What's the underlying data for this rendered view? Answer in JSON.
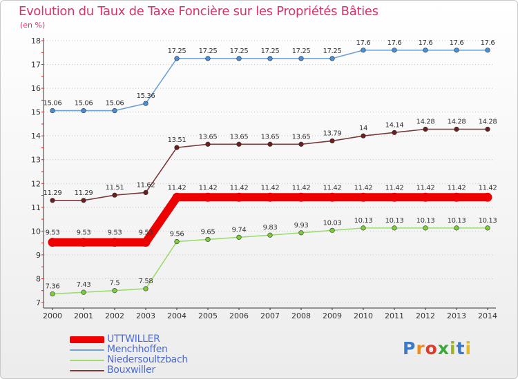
{
  "header": {
    "title": "Evolution du Taux de Taxe Foncière sur les Propriétés Bâties",
    "unit": "(en %)"
  },
  "colors": {
    "title": "#d6336c",
    "legend_text": "#4a6ad8",
    "axis": "#333333",
    "grid": "#c4c4c4"
  },
  "brand": {
    "text": "Proxiti",
    "letter_colors": [
      "#3a78c8",
      "#f08a1c",
      "#e03a2c",
      "#3aa83a",
      "#9ab61c",
      "#3a78c8",
      "#e8b81c"
    ]
  },
  "chart_data": {
    "type": "line",
    "title": "Evolution du Taux de Taxe Foncière sur les Propriétés Bâties",
    "ylabel": "(en %)",
    "xlabel": "",
    "ylim": [
      7,
      18
    ],
    "yticks": [
      "7",
      "8",
      "9",
      "10",
      "11",
      "12",
      "13",
      "14",
      "15",
      "16",
      "17",
      "18"
    ],
    "x": [
      "2000",
      "2001",
      "2002",
      "2003",
      "2004",
      "2005",
      "2006",
      "2007",
      "2008",
      "2009",
      "2010",
      "2011",
      "2012",
      "2013",
      "2014"
    ],
    "grid": "horizontal dotted",
    "legend_position": "bottom-left",
    "series": [
      {
        "name": "UTTWILLER",
        "color": "#ee0000",
        "marker_color": "#ee0000",
        "emphasis": true,
        "values": [
          9.53,
          9.53,
          9.53,
          9.53,
          11.42,
          11.42,
          11.42,
          11.42,
          11.42,
          11.42,
          11.42,
          11.42,
          11.42,
          11.42,
          11.42
        ],
        "labels": [
          "9.53",
          "9.53",
          "9.53",
          "9.53",
          "11.42",
          "11.42",
          "11.42",
          "11.42",
          "11.42",
          "11.42",
          "11.42",
          "11.42",
          "11.42",
          "11.42",
          "11.42"
        ]
      },
      {
        "name": "Menchhoffen",
        "color": "#6fa3d6",
        "marker_color": "#4a8fd4",
        "emphasis": false,
        "values": [
          15.06,
          15.06,
          15.06,
          15.36,
          17.25,
          17.25,
          17.25,
          17.25,
          17.25,
          17.25,
          17.6,
          17.6,
          17.6,
          17.6,
          17.6
        ],
        "labels": [
          "15.06",
          "15.06",
          "15.06",
          "15.36",
          "17.25",
          "17.25",
          "17.25",
          "17.25",
          "17.25",
          "17.25",
          "17.6",
          "17.6",
          "17.6",
          "17.6",
          "17.6"
        ]
      },
      {
        "name": "Niedersoultzbach",
        "color": "#9cdc6c",
        "marker_color": "#7ccc3c",
        "emphasis": false,
        "values": [
          7.36,
          7.43,
          7.5,
          7.58,
          9.56,
          9.65,
          9.74,
          9.83,
          9.93,
          10.03,
          10.13,
          10.13,
          10.13,
          10.13,
          10.13
        ],
        "labels": [
          "7.36",
          "7.43",
          "7.5",
          "7.58",
          "9.56",
          "9.65",
          "9.74",
          "9.83",
          "9.93",
          "10.03",
          "10.13",
          "10.13",
          "10.13",
          "10.13",
          "10.13"
        ]
      },
      {
        "name": "Bouxwiller",
        "color": "#7a3a3a",
        "marker_color": "#6a1e1e",
        "emphasis": false,
        "values": [
          11.29,
          11.29,
          11.51,
          11.62,
          13.51,
          13.65,
          13.65,
          13.65,
          13.65,
          13.79,
          14.0,
          14.14,
          14.28,
          14.28,
          14.28
        ],
        "labels": [
          "11.29",
          "11.29",
          "11.51",
          "11.62",
          "13.51",
          "13.65",
          "13.65",
          "13.65",
          "13.65",
          "13.79",
          "14",
          "14.14",
          "14.28",
          "14.28",
          "14.28"
        ]
      }
    ]
  }
}
